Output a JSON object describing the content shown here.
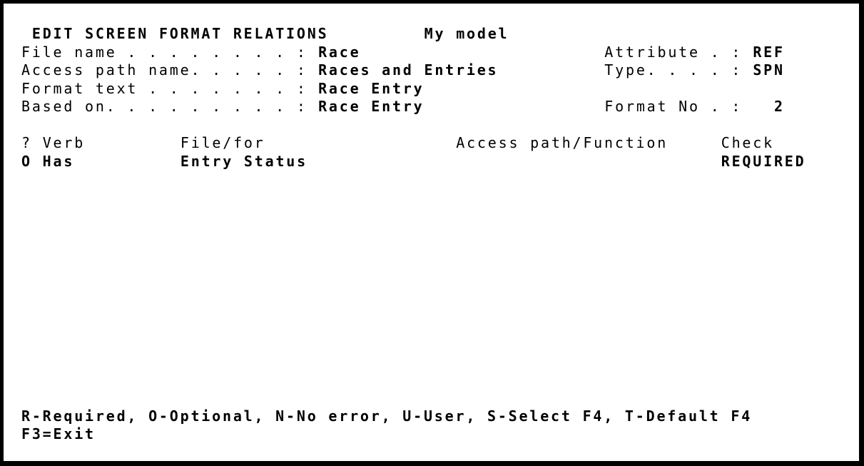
{
  "header": {
    "title": "EDIT SCREEN FORMAT RELATIONS",
    "model": "My model"
  },
  "fields": {
    "file_name": {
      "label": "File name . . . . . . . . :",
      "value": "Race"
    },
    "access_path": {
      "label": "Access path name. . . . . :",
      "value": "Races and Entries"
    },
    "format_text": {
      "label": "Format text . . . . . . . :",
      "value": "Race Entry"
    },
    "based_on": {
      "label": "Based on. . . . . . . . . :",
      "value": "Race Entry"
    },
    "attribute": {
      "label": "Attribute . :",
      "value": "REF"
    },
    "type": {
      "label": "Type. . . . :",
      "value": "SPN"
    },
    "format_no": {
      "label": "Format No . :",
      "value": "2"
    }
  },
  "table": {
    "headers": {
      "select": "?",
      "verb": "Verb",
      "file_for": "File/for",
      "access_function": "Access path/Function",
      "check": "Check"
    },
    "rows": [
      {
        "select": "",
        "verb": "O Has",
        "file_for": "Entry Status",
        "access_function": "",
        "check": "REQUIRED"
      }
    ]
  },
  "footer": {
    "options": "R-Required, O-Optional, N-No error, U-User, S-Select F4, T-Default F4",
    "keys": "F3=Exit"
  }
}
